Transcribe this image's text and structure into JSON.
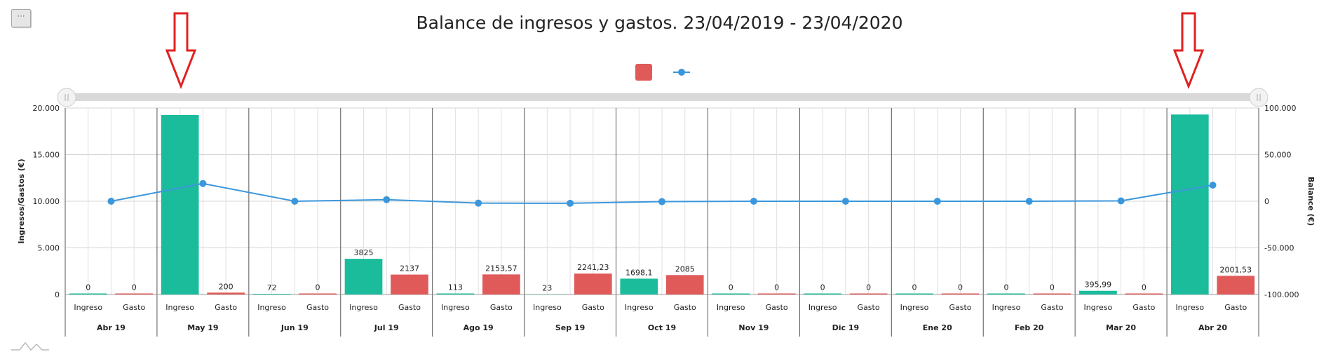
{
  "menu_button": {
    "label": "···"
  },
  "colors": {
    "ingreso": "#1abc9c",
    "gasto": "#e05a5a",
    "balance": "#3b97dd",
    "arrow": "#e02020",
    "scrollbar": "#d9d9d9"
  },
  "icons": {
    "menu": "hamburger-menu-icon",
    "logo": "chart-logo-icon",
    "arrows": "red-down-arrow-icon"
  },
  "chart_data": {
    "type": "bar",
    "title": "Balance de ingresos y gastos. 23/04/2019 - 23/04/2020",
    "ylabel": "Ingresos/Gastos (€)",
    "y2label": "Balance (€)",
    "ylim": [
      0,
      20000
    ],
    "y2lim": [
      -100000,
      100000
    ],
    "yticks": [
      "0",
      "5.000",
      "10.000",
      "15.000",
      "20.000"
    ],
    "y2ticks": [
      "-100.000",
      "-50.000",
      "0",
      "50.000",
      "100.000"
    ],
    "categories": [
      "Abr 19",
      "May 19",
      "Jun 19",
      "Jul 19",
      "Ago 19",
      "Sep 19",
      "Oct 19",
      "Nov 19",
      "Dic 19",
      "Ene 20",
      "Feb 20",
      "Mar 20",
      "Abr 20"
    ],
    "sublabels": [
      "Ingreso",
      "Gasto"
    ],
    "series": [
      {
        "name": "Ingreso",
        "values": [
          0,
          19250,
          72,
          3825,
          113,
          23,
          1698.1,
          0,
          0,
          0,
          0,
          395.99,
          19300
        ],
        "labels": [
          "0",
          "",
          "72",
          "3825",
          "113",
          "23",
          "1698,1",
          "0",
          "0",
          "0",
          "0",
          "395,99",
          ""
        ]
      },
      {
        "name": "Gasto",
        "values": [
          0,
          200,
          0,
          2137,
          2153.57,
          2241.23,
          2085,
          0,
          0,
          0,
          0,
          0,
          2001.53
        ],
        "labels": [
          "0",
          "200",
          "0",
          "2137",
          "2153,57",
          "2241,23",
          "2085",
          "0",
          "0",
          "0",
          "0",
          "0",
          "2001,53"
        ]
      },
      {
        "name": "Balance",
        "type": "line",
        "values": [
          0,
          19000,
          0,
          1700,
          -2000,
          -2200,
          -400,
          0,
          0,
          0,
          0,
          400,
          17300
        ]
      }
    ],
    "legend": "top-center",
    "grid": true
  }
}
